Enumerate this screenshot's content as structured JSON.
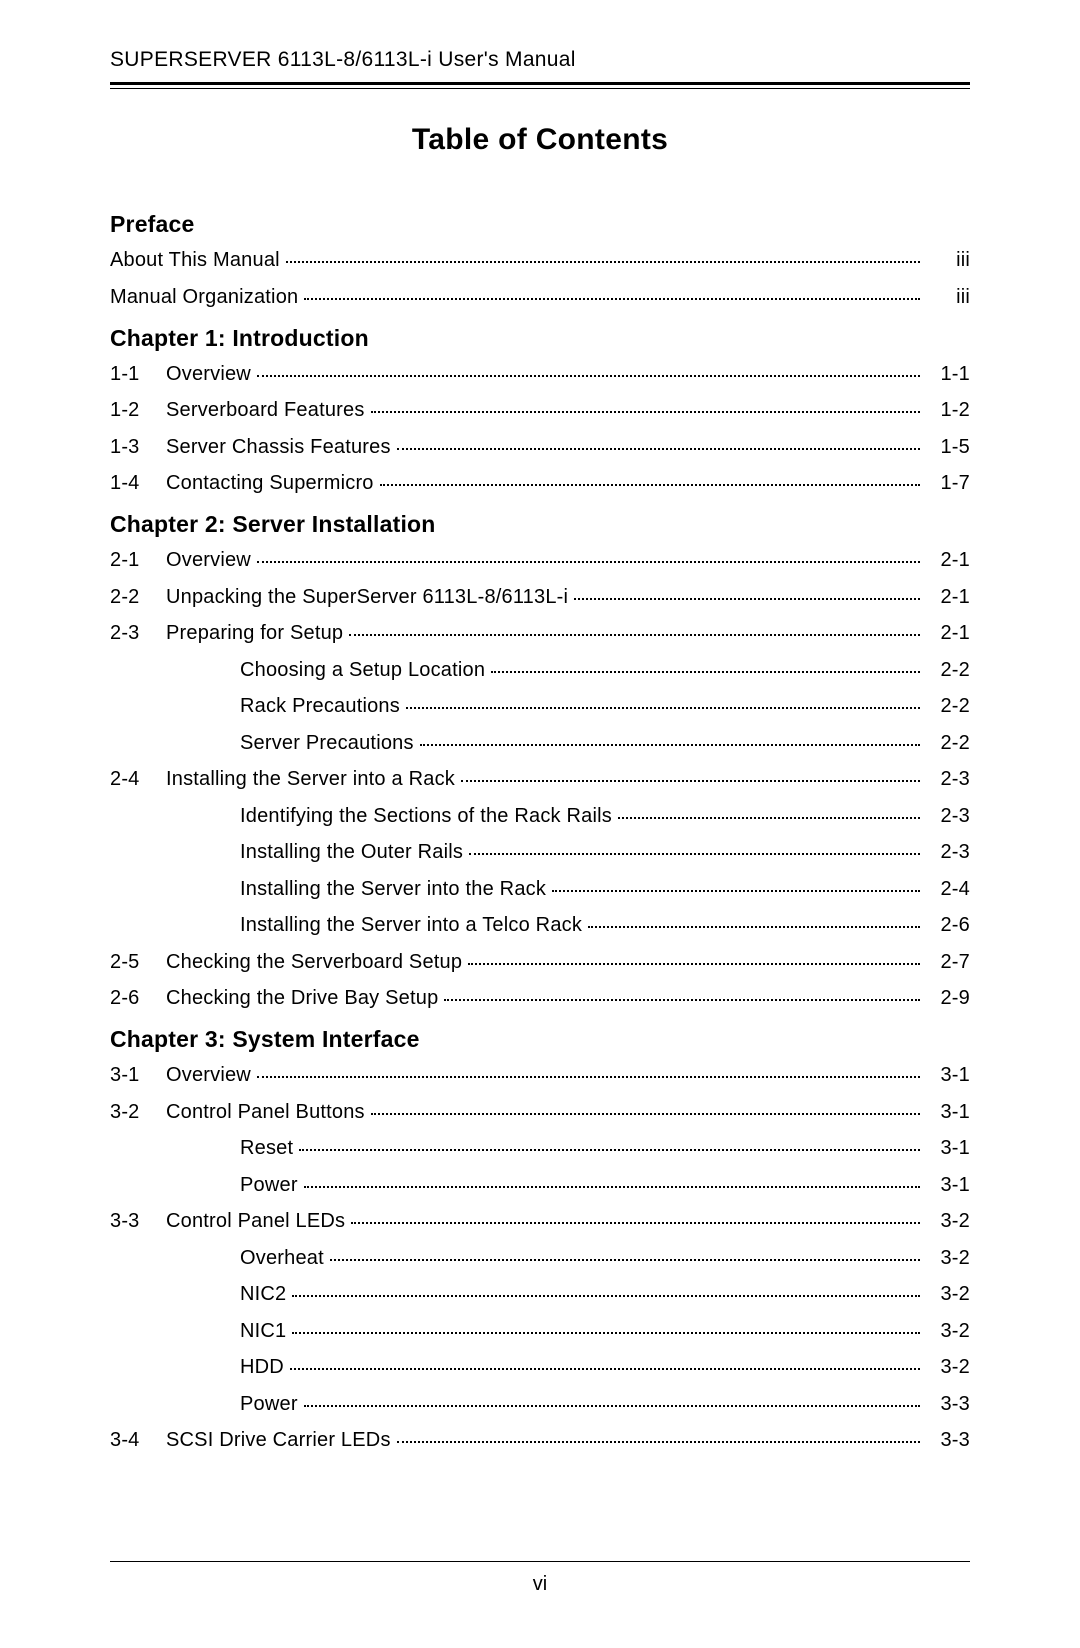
{
  "header": "SUPERSERVER 6113L-8/6113L-i User's Manual",
  "title": "Table of Contents",
  "page_number": "vi",
  "sections": [
    {
      "heading": "Preface",
      "entries": [
        {
          "num": "",
          "label": "About This Manual",
          "page": "iii",
          "level": "nonum"
        },
        {
          "num": "",
          "label": "Manual Organization",
          "page": "iii",
          "level": "nonum"
        }
      ]
    },
    {
      "heading": "Chapter 1: Introduction",
      "entries": [
        {
          "num": "1-1",
          "label": "Overview",
          "page": "1-1",
          "level": "top"
        },
        {
          "num": "1-2",
          "label": "Serverboard Features",
          "page": "1-2",
          "level": "top"
        },
        {
          "num": "1-3",
          "label": "Server Chassis Features",
          "page": "1-5",
          "level": "top"
        },
        {
          "num": "1-4",
          "label": "Contacting Supermicro",
          "page": "1-7",
          "level": "top"
        }
      ]
    },
    {
      "heading": "Chapter 2: Server Installation",
      "entries": [
        {
          "num": "2-1",
          "label": "Overview",
          "page": "2-1",
          "level": "top"
        },
        {
          "num": "2-2",
          "label": "Unpacking the SuperServer 6113L-8/6113L-i",
          "page": "2-1",
          "level": "top"
        },
        {
          "num": "2-3",
          "label": "Preparing for Setup",
          "page": "2-1",
          "level": "top"
        },
        {
          "num": "",
          "label": "Choosing a Setup Location",
          "page": "2-2",
          "level": "sub"
        },
        {
          "num": "",
          "label": "Rack Precautions",
          "page": "2-2",
          "level": "sub"
        },
        {
          "num": "",
          "label": "Server Precautions",
          "page": "2-2",
          "level": "sub"
        },
        {
          "num": "2-4",
          "label": "Installing the Server into a Rack",
          "page": "2-3",
          "level": "top"
        },
        {
          "num": "",
          "label": "Identifying the Sections of the Rack Rails",
          "page": "2-3",
          "level": "sub"
        },
        {
          "num": "",
          "label": "Installing the Outer Rails",
          "page": "2-3",
          "level": "sub"
        },
        {
          "num": "",
          "label": "Installing the Server into the Rack",
          "page": "2-4",
          "level": "sub"
        },
        {
          "num": "",
          "label": "Installing the Server into a Telco Rack",
          "page": "2-6",
          "level": "sub"
        },
        {
          "num": "2-5",
          "label": "Checking the Serverboard Setup",
          "page": "2-7",
          "level": "top"
        },
        {
          "num": "2-6",
          "label": "Checking the Drive Bay Setup",
          "page": "2-9",
          "level": "top"
        }
      ]
    },
    {
      "heading": "Chapter 3: System Interface",
      "entries": [
        {
          "num": "3-1",
          "label": "Overview",
          "page": "3-1",
          "level": "top"
        },
        {
          "num": "3-2",
          "label": "Control Panel Buttons",
          "page": "3-1",
          "level": "top"
        },
        {
          "num": "",
          "label": "Reset",
          "page": "3-1",
          "level": "sub"
        },
        {
          "num": "",
          "label": "Power",
          "page": "3-1",
          "level": "sub"
        },
        {
          "num": "3-3",
          "label": "Control Panel LEDs",
          "page": "3-2",
          "level": "top"
        },
        {
          "num": "",
          "label": "Overheat",
          "page": "3-2",
          "level": "sub"
        },
        {
          "num": "",
          "label": "NIC2",
          "page": "3-2",
          "level": "sub"
        },
        {
          "num": "",
          "label": "NIC1",
          "page": "3-2",
          "level": "sub"
        },
        {
          "num": "",
          "label": "HDD",
          "page": "3-2",
          "level": "sub"
        },
        {
          "num": "",
          "label": "Power",
          "page": "3-3",
          "level": "sub"
        },
        {
          "num": "3-4",
          "label": "SCSI Drive Carrier LEDs",
          "page": "3-3",
          "level": "top"
        }
      ]
    }
  ]
}
